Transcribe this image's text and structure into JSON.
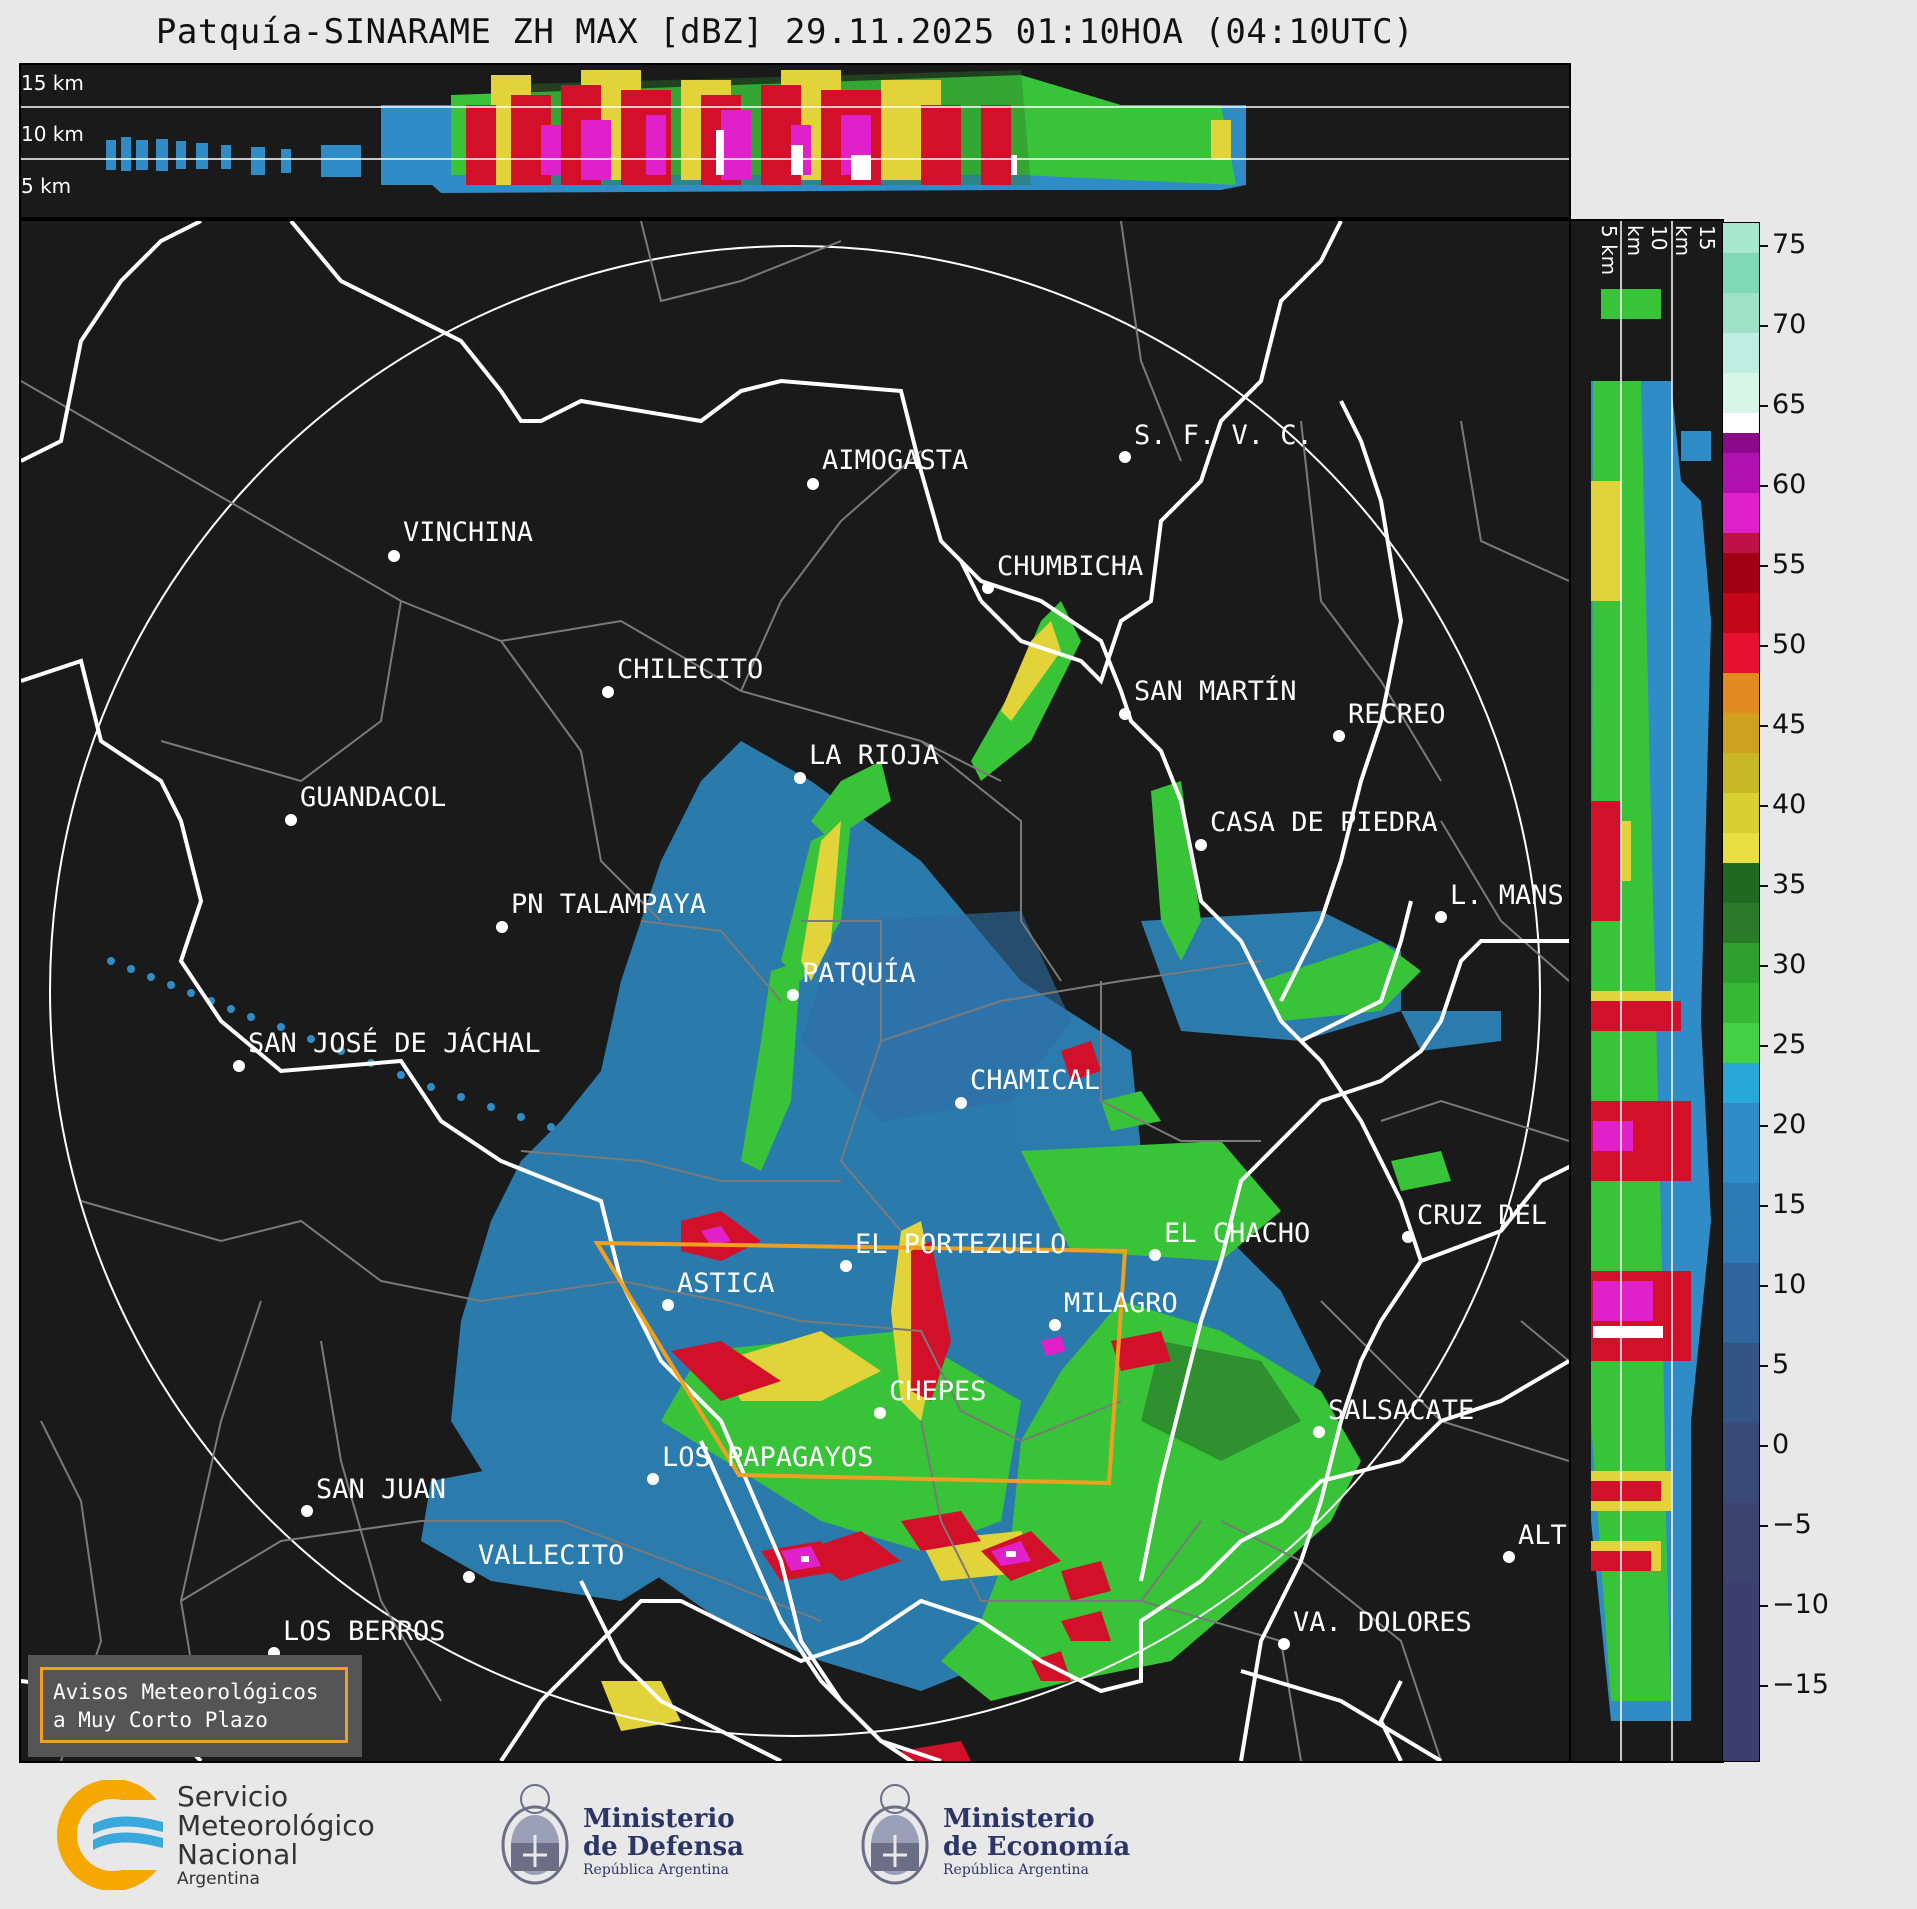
{
  "title": "Patquía-SINARAME ZH MAX [dBZ] 29.11.2025 01:10HOA (04:10UTC)",
  "top_panel": {
    "height_labels": [
      "15 km",
      "10 km",
      "5 km"
    ]
  },
  "right_panel": {
    "height_labels": [
      "5 km",
      "10 km",
      "15 km"
    ]
  },
  "colorbar": {
    "unit": "dBZ",
    "tick_labels": [
      "75",
      "70",
      "65",
      "60",
      "55",
      "50",
      "45",
      "40",
      "35",
      "30",
      "25",
      "20",
      "15",
      "10",
      "5",
      "0",
      "−5",
      "−10",
      "−15"
    ],
    "range": [
      -19.5,
      76.5
    ],
    "colors": {
      "neg": "#3b3f6e",
      "blue": "#2f8cc7",
      "green": "#39c339",
      "darkgreen": "#2a7a2a",
      "yellow": "#e3d33a",
      "orange": "#e38a20",
      "red": "#d2102a",
      "magenta": "#e020c8",
      "white": "#ffffff",
      "aqua": "#7fd8b8"
    }
  },
  "cities": [
    {
      "name": "AIMOGASTA"
    },
    {
      "name": "S. F. V. C."
    },
    {
      "name": "VINCHINA"
    },
    {
      "name": "CHUMBICHA"
    },
    {
      "name": "CHILECITO"
    },
    {
      "name": "SAN MARTÍN"
    },
    {
      "name": "RECREO"
    },
    {
      "name": "LA RIOJA"
    },
    {
      "name": "GUANDACOL"
    },
    {
      "name": "CASA DE PIEDRA"
    },
    {
      "name": "L. MANS"
    },
    {
      "name": "PN TALAMPAYA"
    },
    {
      "name": "PATQUÍA"
    },
    {
      "name": "SAN JOSÉ DE JÁCHAL"
    },
    {
      "name": "CHAMICAL"
    },
    {
      "name": "CRUZ DEL"
    },
    {
      "name": "EL PORTEZUELO"
    },
    {
      "name": "EL CHACHO"
    },
    {
      "name": "ASTICA"
    },
    {
      "name": "MILAGRO"
    },
    {
      "name": "CHEPES"
    },
    {
      "name": "SALSACATE"
    },
    {
      "name": "LOS PAPAGAYOS"
    },
    {
      "name": "SAN JUAN"
    },
    {
      "name": "ALT"
    },
    {
      "name": "VALLECITO"
    },
    {
      "name": "VA. DOLORES"
    },
    {
      "name": "LOS BERROS"
    }
  ],
  "warning_box": {
    "line1": "Avisos Meteorológicos",
    "line2": "a Muy Corto Plazo"
  },
  "logos": {
    "smn": {
      "line1": "Servicio",
      "line2": "Meteorológico",
      "line3": "Nacional",
      "line4": "Argentina"
    },
    "defensa": {
      "line1": "Ministerio",
      "line2": "de Defensa",
      "line3": "República Argentina"
    },
    "economia": {
      "line1": "Ministerio",
      "line2": "de Economía",
      "line3": "República Argentina"
    }
  }
}
